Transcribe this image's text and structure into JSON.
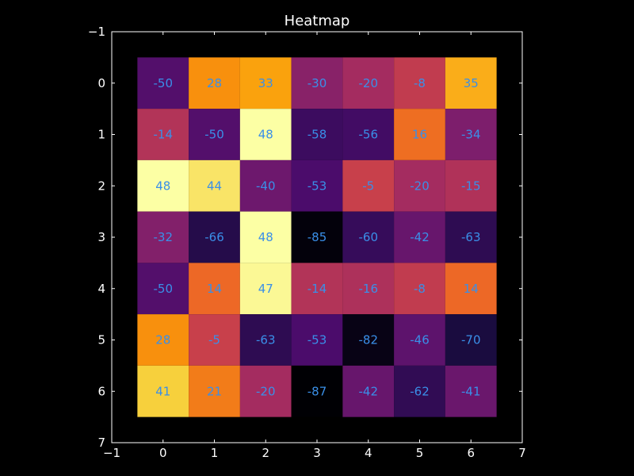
{
  "colors": {
    "background": "#000000",
    "text": "#ffffff",
    "axes": "#ffffff",
    "annotation": "#3a8fe8"
  },
  "chart_data": {
    "type": "heatmap",
    "title": "Heatmap",
    "colormap": "inferno",
    "xlim": [
      -1,
      7
    ],
    "ylim": [
      7,
      -1
    ],
    "x_ticks": [
      "−1",
      "0",
      "1",
      "2",
      "3",
      "4",
      "5",
      "6",
      "7"
    ],
    "y_ticks": [
      "−1",
      "0",
      "1",
      "2",
      "3",
      "4",
      "5",
      "6",
      "7"
    ],
    "rows": [
      0,
      1,
      2,
      3,
      4,
      5,
      6
    ],
    "columns": [
      0,
      1,
      2,
      3,
      4,
      5,
      6
    ],
    "values": [
      [
        -50,
        28,
        33,
        -30,
        -20,
        -8,
        35
      ],
      [
        -14,
        -50,
        48,
        -58,
        -56,
        16,
        -34
      ],
      [
        48,
        44,
        -40,
        -53,
        -5,
        -20,
        -15
      ],
      [
        -32,
        -66,
        48,
        -85,
        -60,
        -42,
        -63
      ],
      [
        -50,
        14,
        47,
        -14,
        -16,
        -8,
        14
      ],
      [
        28,
        -5,
        -63,
        -53,
        -82,
        -46,
        -70
      ],
      [
        41,
        21,
        -20,
        -87,
        -42,
        -62,
        -41
      ]
    ],
    "value_range": [
      -87,
      48
    ],
    "annotations": true,
    "grid": false
  }
}
